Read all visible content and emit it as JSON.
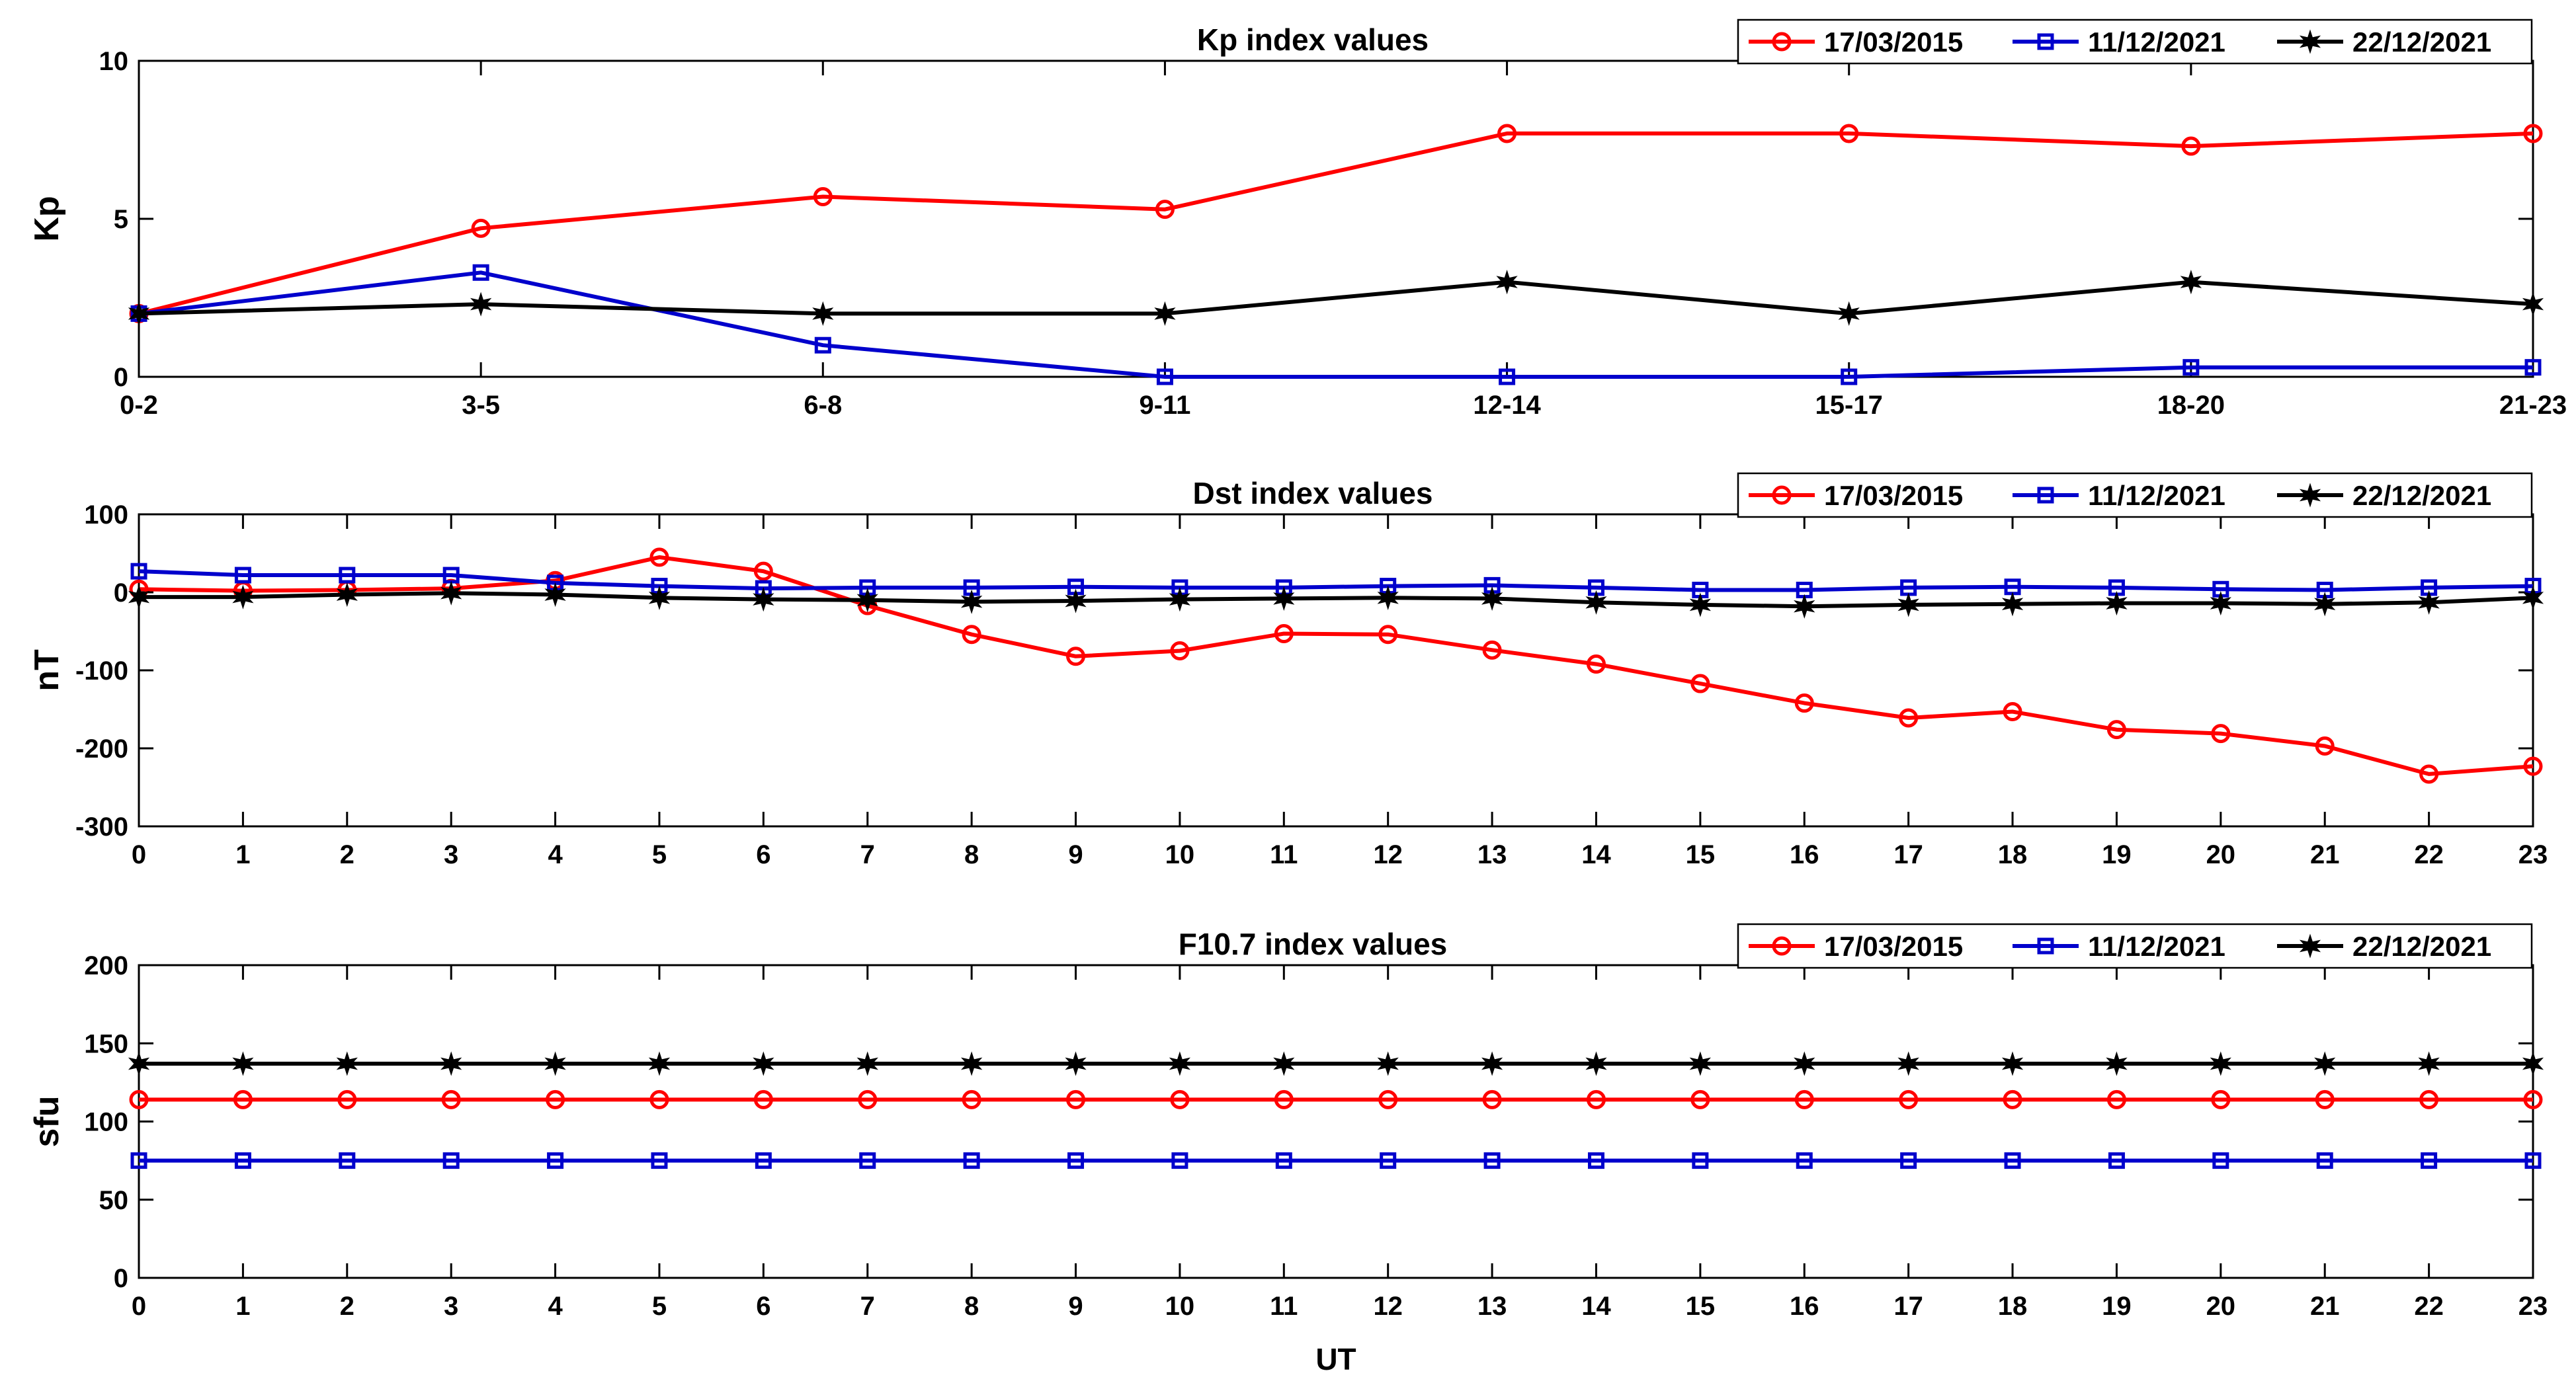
{
  "colors": {
    "red": "#ff0000",
    "blue": "#0000cc",
    "black": "#000000"
  },
  "legend_labels": [
    "17/03/2015",
    "11/12/2021",
    "22/12/2021"
  ],
  "xlabel_bottom": "UT",
  "chart_data": [
    {
      "type": "line",
      "title": "Kp index values",
      "ylabel": "Kp",
      "xlabel": "",
      "ylim": [
        0,
        10
      ],
      "yticks": [
        "0",
        "5",
        "10"
      ],
      "categories": [
        "0-2",
        "3-5",
        "6-8",
        "9-11",
        "12-14",
        "15-17",
        "18-20",
        "21-23"
      ],
      "series": [
        {
          "name": "17/03/2015",
          "color": "#ff0000",
          "marker": "circle",
          "values": [
            2,
            4.7,
            5.7,
            5.3,
            7.7,
            7.7,
            7.3,
            7.7
          ]
        },
        {
          "name": "11/12/2021",
          "color": "#0000cc",
          "marker": "square",
          "values": [
            2,
            3.3,
            1,
            0,
            0,
            0,
            0.3,
            0.3
          ]
        },
        {
          "name": "22/12/2021",
          "color": "#000000",
          "marker": "star",
          "values": [
            2,
            2.3,
            2,
            2,
            3,
            2,
            3,
            2.3
          ]
        }
      ]
    },
    {
      "type": "line",
      "title": "Dst index values",
      "ylabel": "nT",
      "xlabel": "",
      "ylim": [
        -300,
        100
      ],
      "yticks": [
        "-300",
        "-200",
        "-100",
        "0",
        "100"
      ],
      "categories": [
        "0",
        "1",
        "2",
        "3",
        "4",
        "5",
        "6",
        "7",
        "8",
        "9",
        "10",
        "11",
        "12",
        "13",
        "14",
        "15",
        "16",
        "17",
        "18",
        "19",
        "20",
        "21",
        "22",
        "23"
      ],
      "series": [
        {
          "name": "17/03/2015",
          "color": "#ff0000",
          "marker": "circle",
          "values": [
            4,
            2,
            3,
            5,
            15,
            45,
            27,
            -17,
            -54,
            -82,
            -75,
            -53,
            -54,
            -74,
            -92,
            -117,
            -142,
            -161,
            -153,
            -176,
            -181,
            -197,
            -233,
            -223
          ]
        },
        {
          "name": "11/12/2021",
          "color": "#0000cc",
          "marker": "square",
          "values": [
            27,
            22,
            22,
            22,
            12,
            8,
            5,
            6,
            6,
            7,
            6,
            6,
            8,
            9,
            6,
            3,
            3,
            6,
            7,
            6,
            4,
            3,
            6,
            8
          ]
        },
        {
          "name": "22/12/2021",
          "color": "#000000",
          "marker": "star",
          "values": [
            -6,
            -6,
            -3,
            -1,
            -3,
            -7,
            -9,
            -10,
            -12,
            -11,
            -9,
            -8,
            -7,
            -8,
            -13,
            -16,
            -18,
            -16,
            -15,
            -14,
            -14,
            -15,
            -13,
            -7
          ]
        }
      ]
    },
    {
      "type": "line",
      "title": "F10.7  index values",
      "ylabel": "sfu",
      "xlabel": "UT",
      "ylim": [
        0,
        200
      ],
      "yticks": [
        "0",
        "50",
        "100",
        "150",
        "200"
      ],
      "categories": [
        "0",
        "1",
        "2",
        "3",
        "4",
        "5",
        "6",
        "7",
        "8",
        "9",
        "10",
        "11",
        "12",
        "13",
        "14",
        "15",
        "16",
        "17",
        "18",
        "19",
        "20",
        "21",
        "22",
        "23"
      ],
      "series": [
        {
          "name": "17/03/2015",
          "color": "#ff0000",
          "marker": "circle",
          "values": [
            114,
            114,
            114,
            114,
            114,
            114,
            114,
            114,
            114,
            114,
            114,
            114,
            114,
            114,
            114,
            114,
            114,
            114,
            114,
            114,
            114,
            114,
            114,
            114
          ]
        },
        {
          "name": "11/12/2021",
          "color": "#0000cc",
          "marker": "square",
          "values": [
            75,
            75,
            75,
            75,
            75,
            75,
            75,
            75,
            75,
            75,
            75,
            75,
            75,
            75,
            75,
            75,
            75,
            75,
            75,
            75,
            75,
            75,
            75,
            75
          ]
        },
        {
          "name": "22/12/2021",
          "color": "#000000",
          "marker": "star",
          "values": [
            137,
            137,
            137,
            137,
            137,
            137,
            137,
            137,
            137,
            137,
            137,
            137,
            137,
            137,
            137,
            137,
            137,
            137,
            137,
            137,
            137,
            137,
            137,
            137
          ]
        }
      ]
    }
  ]
}
